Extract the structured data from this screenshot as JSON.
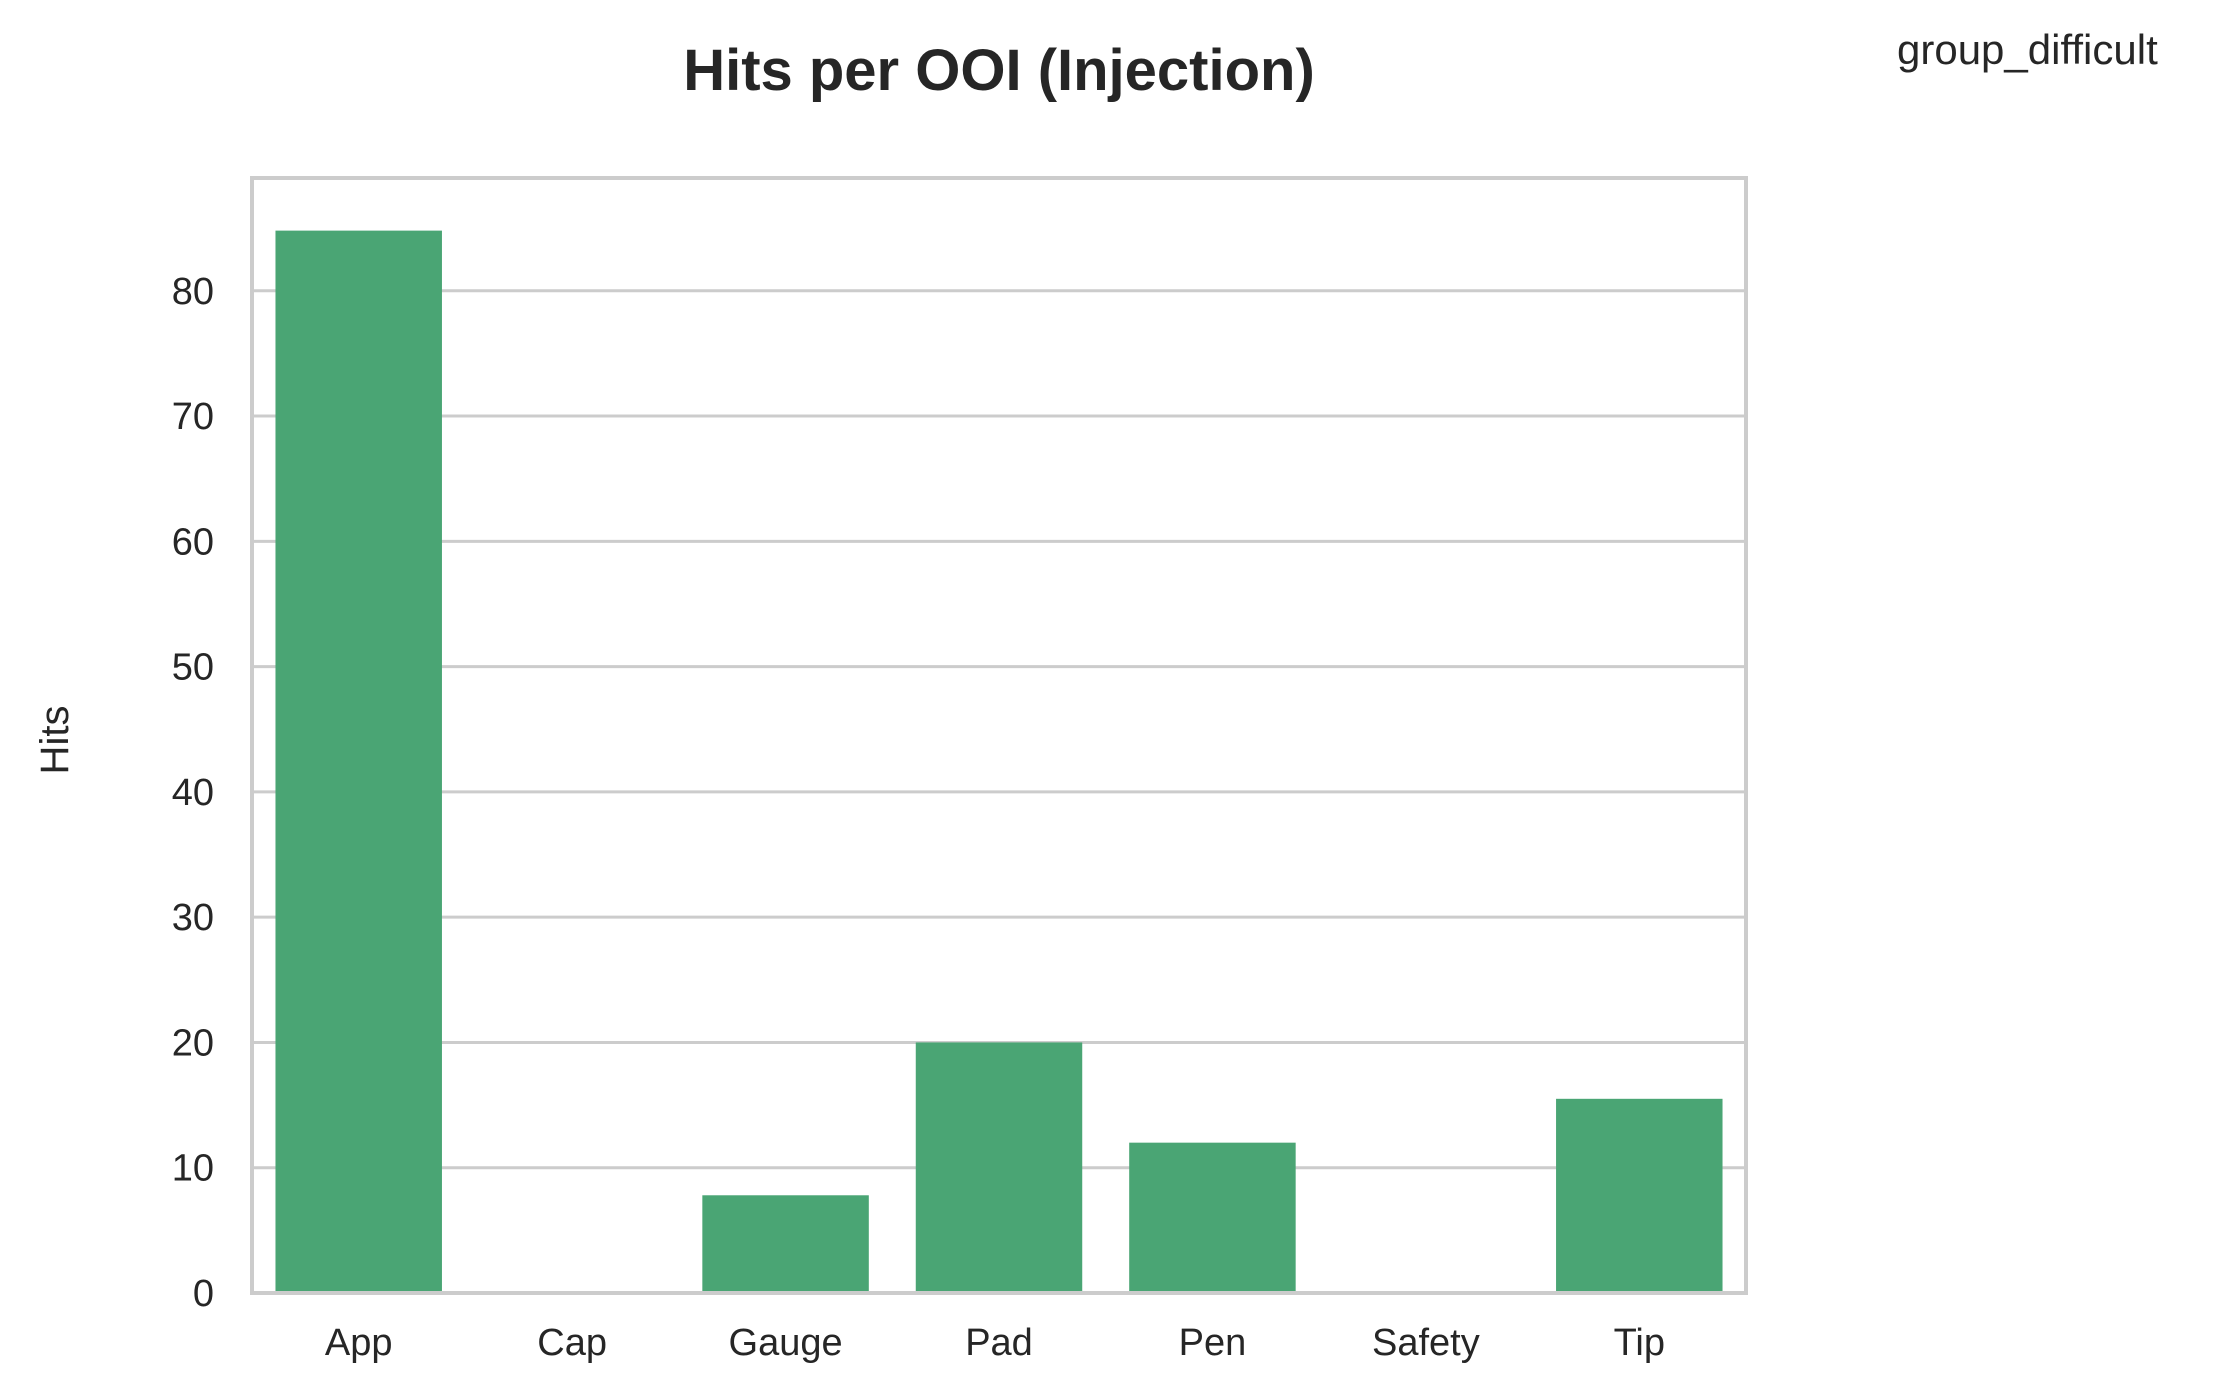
{
  "chart_data": {
    "type": "bar",
    "title": "Hits per OOI (Injection)",
    "legend_title": "group_difficult",
    "xlabel": "",
    "ylabel": "Hits",
    "categories": [
      "App",
      "Cap",
      "Gauge",
      "Pad",
      "Pen",
      "Safety",
      "Tip"
    ],
    "values": [
      84.8,
      0,
      7.8,
      20,
      12,
      0,
      15.5
    ],
    "ylim": [
      0,
      89
    ],
    "yticks": [
      0,
      10,
      20,
      30,
      40,
      50,
      60,
      70,
      80
    ],
    "grid": true,
    "bar_color": "#4aa574",
    "grid_color": "#cccccc"
  }
}
